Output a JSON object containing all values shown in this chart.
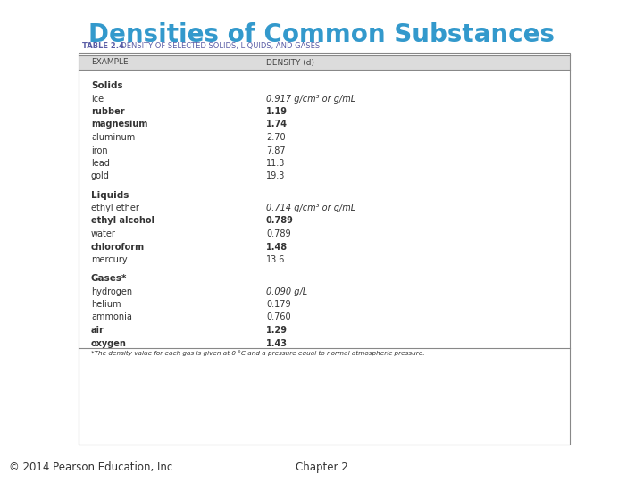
{
  "title": "Densities of Common Substances",
  "title_color": "#3399CC",
  "table_title_bold": "TABLE 2.4",
  "table_title_normal": "  DENSITY OF SELECTED SOLIDS, LIQUIDS, AND GASES",
  "col1_header": "EXAMPLE",
  "col2_header": "DENSITY (d)",
  "sections": [
    {
      "section_name": "Solids",
      "rows": [
        {
          "name": "ice",
          "density": "0.917 g/cm³ or g/mL",
          "name_bold": false,
          "density_bold": false,
          "density_italic": true
        },
        {
          "name": "rubber",
          "density": "1.19",
          "name_bold": true,
          "density_bold": true,
          "density_italic": false
        },
        {
          "name": "magnesium",
          "density": "1.74",
          "name_bold": true,
          "density_bold": true,
          "density_italic": false
        },
        {
          "name": "aluminum",
          "density": "2.70",
          "name_bold": false,
          "density_bold": false,
          "density_italic": false
        },
        {
          "name": "iron",
          "density": "7.87",
          "name_bold": false,
          "density_bold": false,
          "density_italic": false
        },
        {
          "name": "lead",
          "density": "11.3",
          "name_bold": false,
          "density_bold": false,
          "density_italic": false
        },
        {
          "name": "gold",
          "density": "19.3",
          "name_bold": false,
          "density_bold": false,
          "density_italic": false
        }
      ]
    },
    {
      "section_name": "Liquids",
      "rows": [
        {
          "name": "ethyl ether",
          "density": "0.714 g/cm³ or g/mL",
          "name_bold": false,
          "density_bold": false,
          "density_italic": true
        },
        {
          "name": "ethyl alcohol",
          "density": "0.789",
          "name_bold": true,
          "density_bold": true,
          "density_italic": false
        },
        {
          "name": "water",
          "density": "0.789",
          "name_bold": false,
          "density_bold": false,
          "density_italic": false
        },
        {
          "name": "chloroform",
          "density": "1.48",
          "name_bold": true,
          "density_bold": true,
          "density_italic": false
        },
        {
          "name": "mercury",
          "density": "13.6",
          "name_bold": false,
          "density_bold": false,
          "density_italic": false
        }
      ]
    },
    {
      "section_name": "Gases*",
      "rows": [
        {
          "name": "hydrogen",
          "density": "0.090 g/L",
          "name_bold": false,
          "density_bold": false,
          "density_italic": true
        },
        {
          "name": "helium",
          "density": "0.179",
          "name_bold": false,
          "density_bold": false,
          "density_italic": false
        },
        {
          "name": "ammonia",
          "density": "0.760",
          "name_bold": false,
          "density_bold": false,
          "density_italic": false
        },
        {
          "name": "air",
          "density": "1.29",
          "name_bold": true,
          "density_bold": true,
          "density_italic": false
        },
        {
          "name": "oxygen",
          "density": "1.43",
          "name_bold": true,
          "density_bold": true,
          "density_italic": false
        }
      ]
    }
  ],
  "footnote": "*The density value for each gas is given at 0 °C and a pressure equal to normal atmospheric pressure.",
  "footer_left": "© 2014 Pearson Education, Inc.",
  "footer_right": "Chapter 2",
  "bg_color": "#FFFFFF",
  "table_header_bg": "#DCDCDC",
  "table_border_color": "#888888",
  "table_title_color": "#5B5EA6",
  "text_color": "#333333"
}
